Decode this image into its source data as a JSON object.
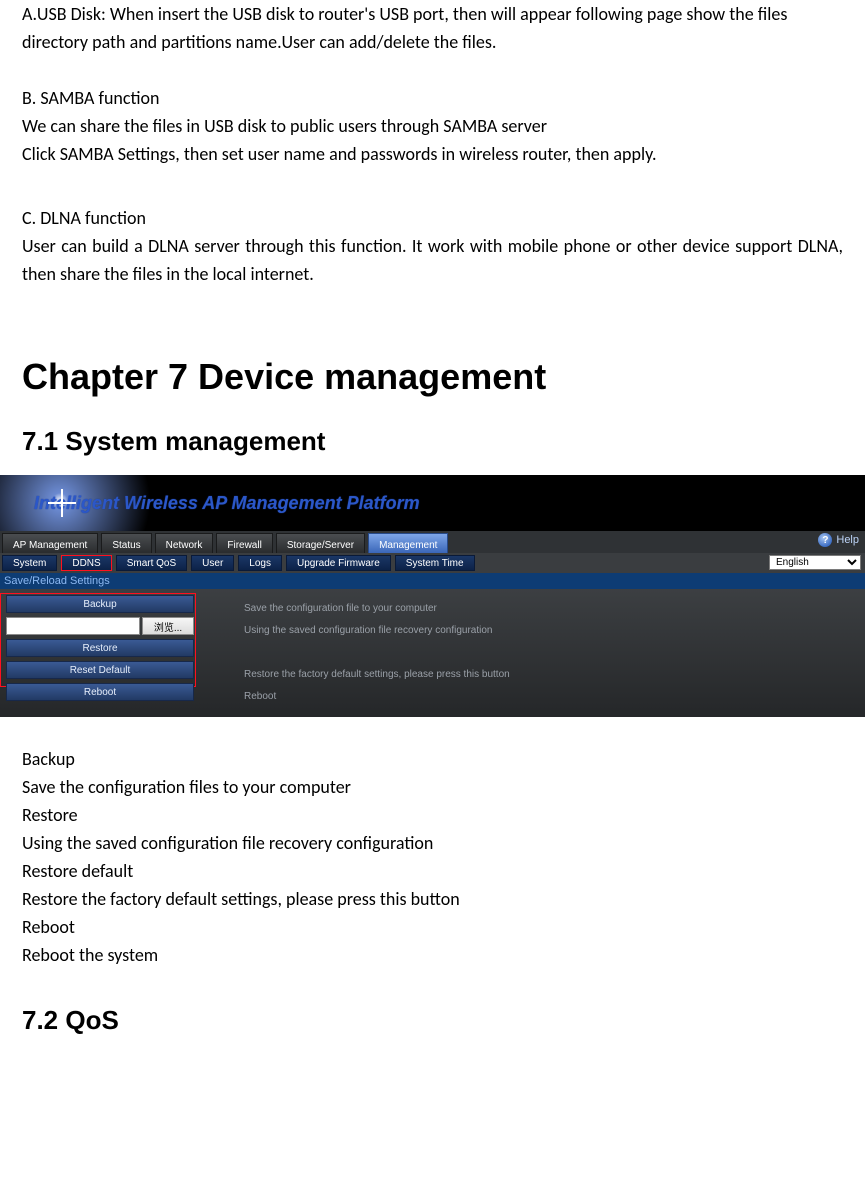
{
  "intro": {
    "a": "A.USB Disk: When insert the USB disk to router's USB port, then will appear following page show the files directory path and partitions name.User can add/delete the files.",
    "b_title": "B. SAMBA function",
    "b_line1": "We can share the files in USB disk to public users through SAMBA server",
    "b_line2": "Click SAMBA Settings, then set user name and passwords in wireless router, then apply.",
    "c_title": "C. DLNA function",
    "c_body": "User can build a DLNA server through this function. It work with mobile phone or other device support DLNA, then share the files in the local internet."
  },
  "chapter_title": "Chapter 7 Device management",
  "section71_title": "7.1 System management",
  "router_ui": {
    "banner_title": "Intelligent Wireless AP Management Platform",
    "tabs": [
      "AP Management",
      "Status",
      "Network",
      "Firewall",
      "Storage/Server"
    ],
    "active_tab": "Management",
    "help_label": "Help",
    "subtabs": [
      "System",
      "DDNS",
      "Smart QoS",
      "User",
      "Logs",
      "Upgrade Firmware",
      "System Time"
    ],
    "active_subtab_index": 1,
    "lang_value": "English",
    "section_header": "Save/Reload Settings",
    "rows": {
      "backup": {
        "btn": "Backup",
        "desc": "Save the configuration file to your computer"
      },
      "browse": {
        "btn": "浏览...",
        "desc": "Using the saved configuration file recovery configuration"
      },
      "restore": {
        "btn": "Restore",
        "desc": ""
      },
      "reset": {
        "btn": "Reset Default",
        "desc": "Restore the factory default settings, please press this button"
      },
      "reboot": {
        "btn": "Reboot",
        "desc": "Reboot"
      }
    }
  },
  "explain": {
    "backup_t": "Backup",
    "backup_d": "Save the configuration files to your computer",
    "restore_t": "Restore",
    "restore_d": "Using the saved configuration file recovery configuration",
    "reset_t": "Restore default",
    "reset_d": "Restore the factory default settings, please press this button",
    "reboot_t": "Reboot",
    "reboot_d": "Reboot the system"
  },
  "section72_title": "7.2 QoS"
}
